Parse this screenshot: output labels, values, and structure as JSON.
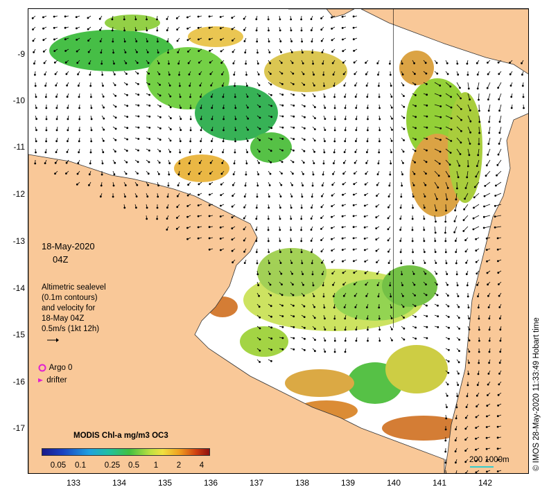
{
  "map": {
    "y_axis_ticks": [
      "-9",
      "-10",
      "-11",
      "-12",
      "-13",
      "-14",
      "-15",
      "-16",
      "-17"
    ],
    "x_axis_ticks": [
      "133",
      "134",
      "135",
      "136",
      "137",
      "138",
      "139",
      "140",
      "141",
      "142"
    ],
    "land_color": "#f9c898",
    "sea_color": "#ffffff"
  },
  "overlay": {
    "date": "18-May-2020",
    "time": "04Z",
    "legend_lines": [
      "Altimetric sealevel",
      "(0.1m contours)",
      "and velocity for",
      "18-May 04Z",
      "0.5m/s (1kt 12h)"
    ],
    "argo_label": "Argo 0",
    "drifter_label": "drifter"
  },
  "colorbar": {
    "title": "MODIS Chl-a mg/m3 OC3",
    "ticks": [
      "0.05",
      "0.1",
      "0.25",
      "0.5",
      "1",
      "2",
      "4"
    ]
  },
  "scale": {
    "label": "200  1000m"
  },
  "credit": "© IMOS 28-May-2020 11:33:49 Hobart time",
  "icons": {
    "argo": "circle-icon",
    "drifter": "arrowhead-icon"
  }
}
